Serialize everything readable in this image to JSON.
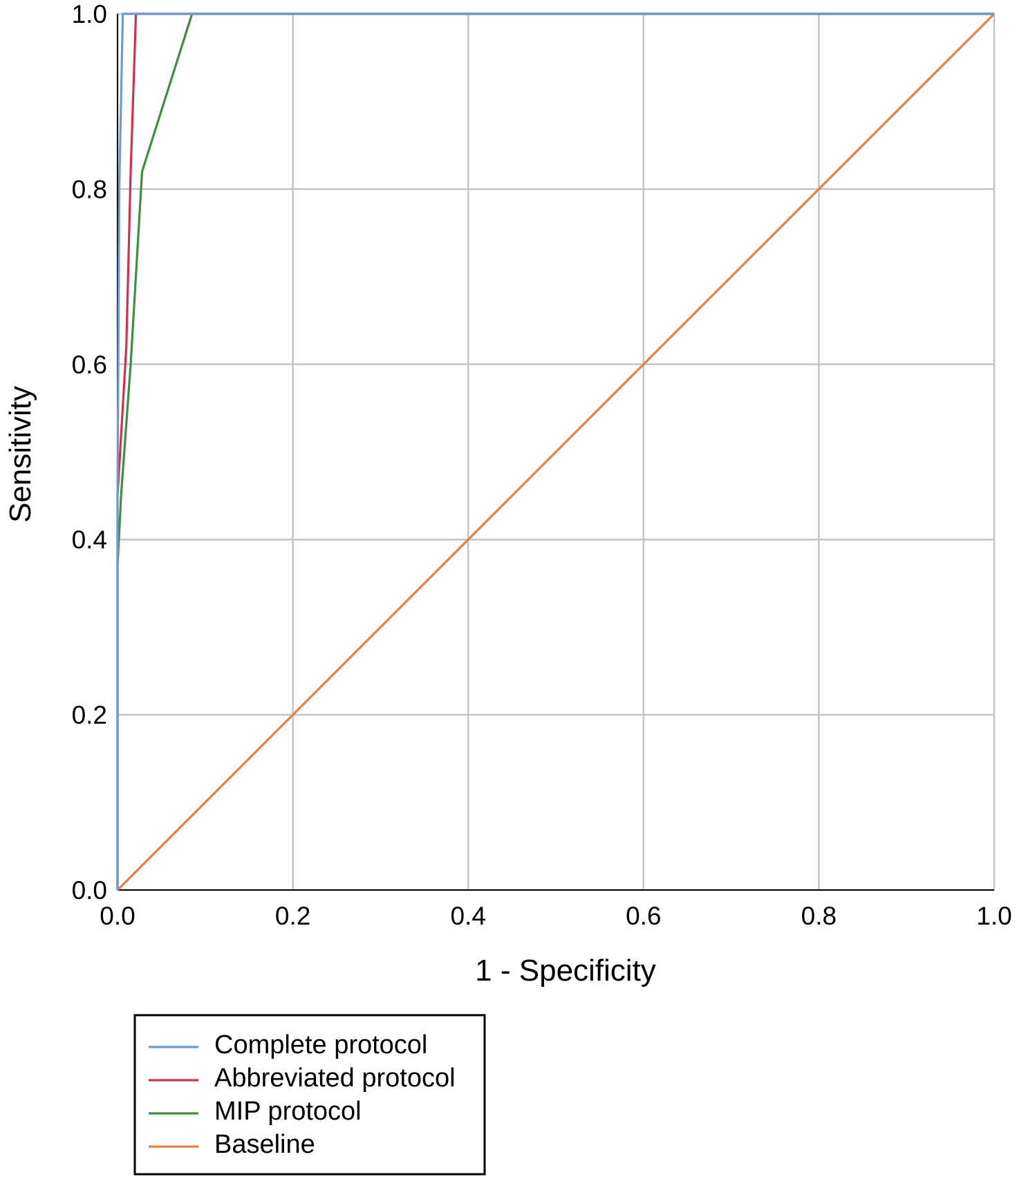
{
  "chart_data": {
    "type": "line",
    "xlabel": "1 - Specificity",
    "ylabel": "Sensitivity",
    "xlim": [
      0,
      1
    ],
    "ylim": [
      0,
      1
    ],
    "grid": true,
    "legend_position": "bottom-left",
    "x_ticks": [
      "0.0",
      "0.2",
      "0.4",
      "0.6",
      "0.8",
      "1.0"
    ],
    "y_ticks": [
      "0.0",
      "0.2",
      "0.4",
      "0.6",
      "0.8",
      "1.0"
    ],
    "series": [
      {
        "name": "Complete protocol",
        "color": "#6a9bd8",
        "x": [
          0,
          0,
          0.002,
          0.006,
          1.0
        ],
        "y": [
          0,
          0.45,
          0.8,
          1.0,
          1.0
        ]
      },
      {
        "name": "Abbreviated protocol",
        "color": "#d62f4d",
        "x": [
          0,
          0,
          0.01,
          0.015,
          0.021,
          1.0
        ],
        "y": [
          0,
          0.45,
          0.62,
          0.82,
          1.0,
          1.0
        ]
      },
      {
        "name": "MIP protocol",
        "color": "#3c8f3c",
        "x": [
          0,
          0,
          0.004,
          0.015,
          0.028,
          0.085,
          1.0
        ],
        "y": [
          0,
          0.37,
          0.45,
          0.6,
          0.82,
          1.0,
          1.0
        ]
      },
      {
        "name": "Baseline",
        "color": "#ee7d3f",
        "x": [
          0,
          1
        ],
        "y": [
          0,
          1
        ]
      }
    ]
  }
}
